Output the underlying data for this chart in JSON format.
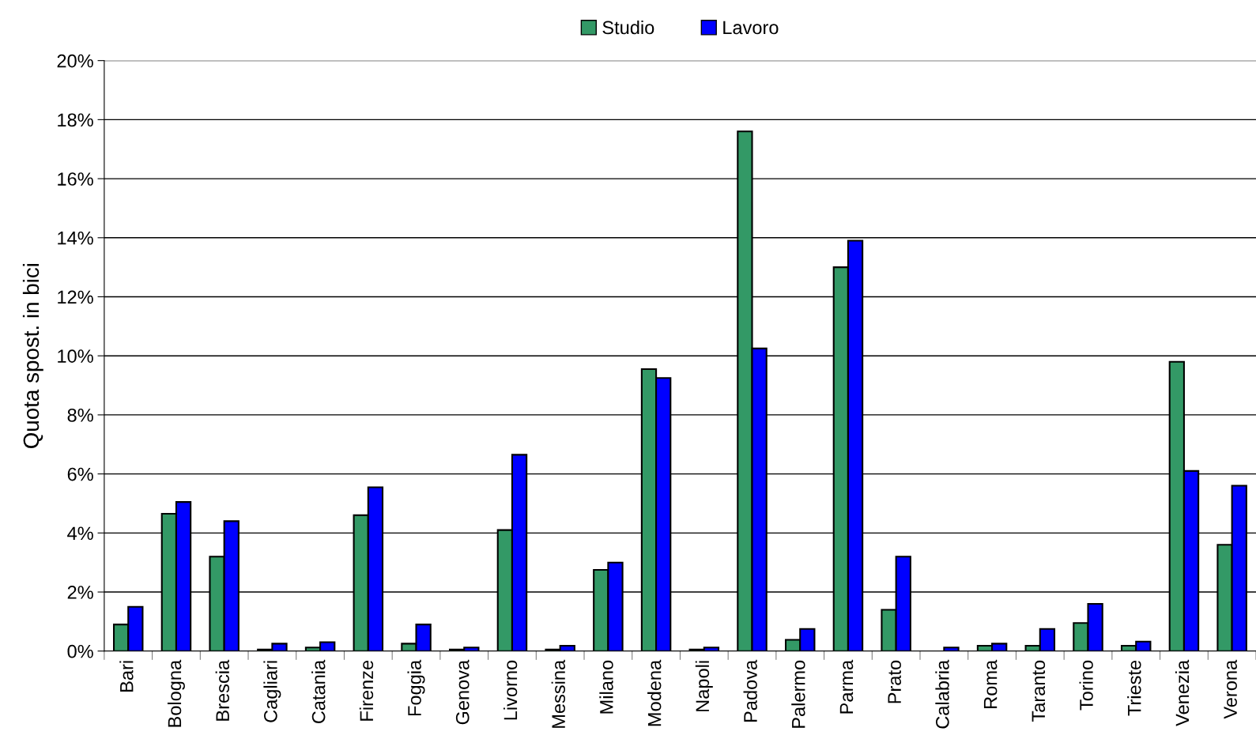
{
  "chart_data": {
    "type": "bar",
    "ylabel": "Quota spost. in bici",
    "categories": [
      "Bari",
      "Bologna",
      "Brescia",
      "Cagliari",
      "Catania",
      "Firenze",
      "Foggia",
      "Genova",
      "Livorno",
      "Messina",
      "Milano",
      "Modena",
      "Napoli",
      "Padova",
      "Palermo",
      "Parma",
      "Prato",
      "Calabria",
      "Roma",
      "Taranto",
      "Torino",
      "Trieste",
      "Venezia",
      "Verona"
    ],
    "series": [
      {
        "name": "Studio",
        "color": "#339966",
        "values": [
          0.9,
          4.65,
          3.2,
          0.05,
          0.12,
          4.6,
          0.25,
          0.05,
          4.1,
          0.05,
          2.75,
          9.55,
          0.05,
          17.6,
          0.38,
          13.0,
          1.4,
          null,
          0.18,
          0.18,
          0.95,
          0.18,
          9.8,
          3.6
        ]
      },
      {
        "name": "Lavoro",
        "color": "#0000ff",
        "values": [
          1.5,
          5.05,
          4.4,
          0.25,
          0.3,
          5.55,
          0.9,
          0.12,
          6.65,
          0.18,
          3.0,
          9.25,
          0.12,
          10.25,
          0.75,
          13.9,
          3.2,
          0.12,
          0.25,
          0.75,
          1.6,
          0.32,
          6.1,
          5.6
        ]
      }
    ],
    "ylim": [
      0,
      20
    ],
    "yticks": [
      {
        "value": 0,
        "label": "0%"
      },
      {
        "value": 2,
        "label": "2%"
      },
      {
        "value": 4,
        "label": "4%"
      },
      {
        "value": 6,
        "label": "6%"
      },
      {
        "value": 8,
        "label": "8%"
      },
      {
        "value": 10,
        "label": "10%"
      },
      {
        "value": 12,
        "label": "12%"
      },
      {
        "value": 14,
        "label": "14%"
      },
      {
        "value": 16,
        "label": "16%"
      },
      {
        "value": 18,
        "label": "18%"
      },
      {
        "value": 20,
        "label": "20%"
      }
    ],
    "grid": "y",
    "legend": "top"
  }
}
